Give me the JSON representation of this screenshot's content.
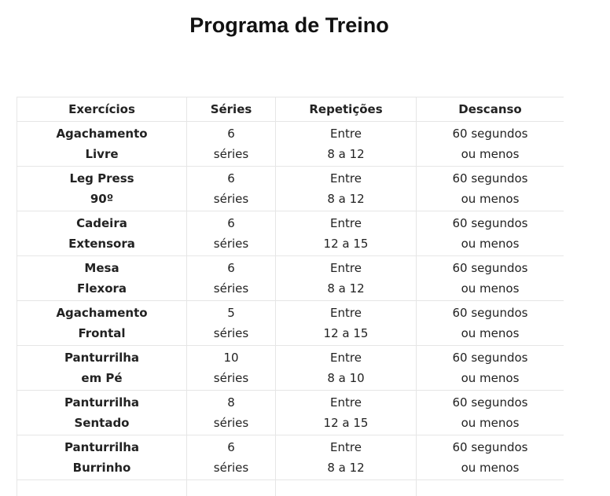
{
  "title": "Programa de Treino",
  "table": {
    "headers": [
      "Exercícios",
      "Séries",
      "Repetições",
      "Descanso"
    ],
    "rows": [
      {
        "exercise": [
          "Agachamento",
          "Livre"
        ],
        "series": [
          "6",
          "séries"
        ],
        "reps": [
          "Entre",
          "8 a 12"
        ],
        "rest": [
          "60 segundos",
          "ou menos"
        ]
      },
      {
        "exercise": [
          "Leg Press",
          "90º"
        ],
        "series": [
          "6",
          "séries"
        ],
        "reps": [
          "Entre",
          "8 a 12"
        ],
        "rest": [
          "60 segundos",
          "ou menos"
        ]
      },
      {
        "exercise": [
          "Cadeira",
          "Extensora"
        ],
        "series": [
          "6",
          "séries"
        ],
        "reps": [
          "Entre",
          "12 a 15"
        ],
        "rest": [
          "60 segundos",
          "ou menos"
        ]
      },
      {
        "exercise": [
          "Mesa",
          "Flexora"
        ],
        "series": [
          "6",
          "séries"
        ],
        "reps": [
          "Entre",
          "8 a 12"
        ],
        "rest": [
          "60 segundos",
          "ou menos"
        ]
      },
      {
        "exercise": [
          "Agachamento",
          "Frontal"
        ],
        "series": [
          "5",
          "séries"
        ],
        "reps": [
          "Entre",
          "12 a 15"
        ],
        "rest": [
          "60 segundos",
          "ou menos"
        ]
      },
      {
        "exercise": [
          "Panturrilha",
          "em Pé"
        ],
        "series": [
          "10",
          "séries"
        ],
        "reps": [
          "Entre",
          "8 a 10"
        ],
        "rest": [
          "60 segundos",
          "ou menos"
        ]
      },
      {
        "exercise": [
          "Panturrilha",
          "Sentado"
        ],
        "series": [
          "8",
          "séries"
        ],
        "reps": [
          "Entre",
          "12 a 15"
        ],
        "rest": [
          "60 segundos",
          "ou menos"
        ]
      },
      {
        "exercise": [
          "Panturrilha",
          "Burrinho"
        ],
        "series": [
          "6",
          "séries"
        ],
        "reps": [
          "Entre",
          "8 a 12"
        ],
        "rest": [
          "60 segundos",
          "ou menos"
        ]
      }
    ]
  }
}
